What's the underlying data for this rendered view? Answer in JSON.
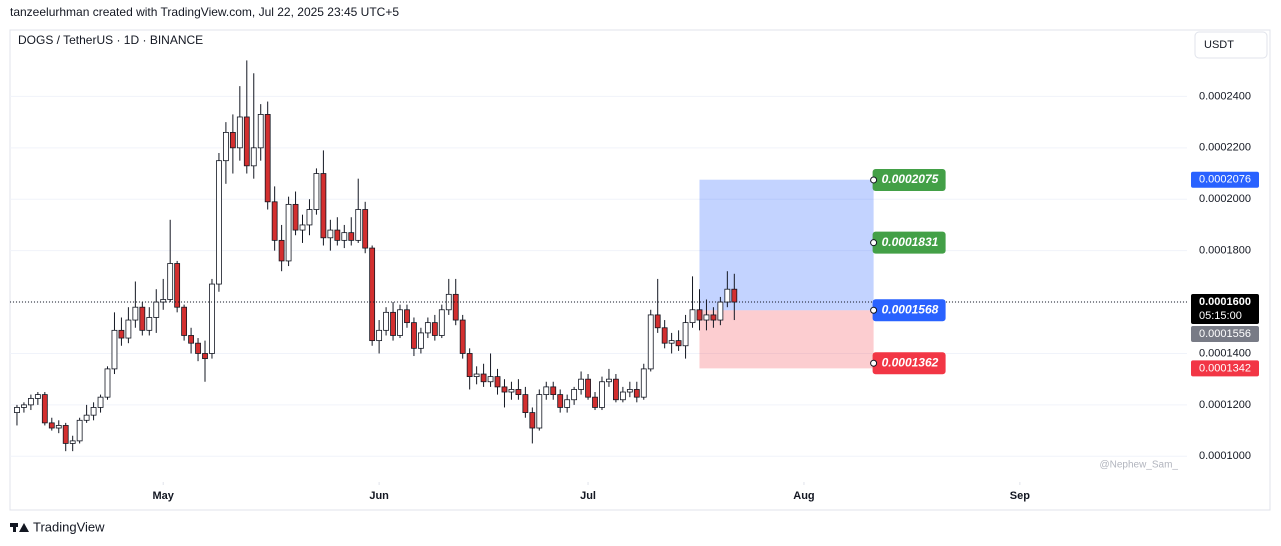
{
  "header": "tanzeelurhman created with TradingView.com, Jul 22, 2025 23:45 UTC+5",
  "footer": "TradingView",
  "chart_data": {
    "type": "candlestick",
    "title": "DOGS / TetherUS · 1D · BINANCE",
    "currency": "USDT",
    "watermark": "@Nephew_Sam_",
    "up_color": "#ffffff",
    "down_color": "#d32f2f",
    "x": [
      "2025-04-10",
      "2025-04-11",
      "2025-04-12",
      "2025-04-13",
      "2025-04-14",
      "2025-04-15",
      "2025-04-16",
      "2025-04-17",
      "2025-04-18",
      "2025-04-19",
      "2025-04-20",
      "2025-04-21",
      "2025-04-22",
      "2025-04-23",
      "2025-04-24",
      "2025-04-25",
      "2025-04-26",
      "2025-04-27",
      "2025-04-28",
      "2025-04-29",
      "2025-04-30",
      "2025-05-01",
      "2025-05-02",
      "2025-05-03",
      "2025-05-04",
      "2025-05-05",
      "2025-05-06",
      "2025-05-07",
      "2025-05-08",
      "2025-05-09",
      "2025-05-10",
      "2025-05-11",
      "2025-05-12",
      "2025-05-13",
      "2025-05-14",
      "2025-05-15",
      "2025-05-16",
      "2025-05-17",
      "2025-05-18",
      "2025-05-19",
      "2025-05-20",
      "2025-05-21",
      "2025-05-22",
      "2025-05-23",
      "2025-05-24",
      "2025-05-25",
      "2025-05-26",
      "2025-05-27",
      "2025-05-28",
      "2025-05-29",
      "2025-05-30",
      "2025-05-31",
      "2025-06-01",
      "2025-06-02",
      "2025-06-03",
      "2025-06-04",
      "2025-06-05",
      "2025-06-06",
      "2025-06-07",
      "2025-06-08",
      "2025-06-09",
      "2025-06-10",
      "2025-06-11",
      "2025-06-12",
      "2025-06-13",
      "2025-06-14",
      "2025-06-15",
      "2025-06-16",
      "2025-06-17",
      "2025-06-18",
      "2025-06-19",
      "2025-06-20",
      "2025-06-21",
      "2025-06-22",
      "2025-06-23",
      "2025-06-24",
      "2025-06-25",
      "2025-06-26",
      "2025-06-27",
      "2025-06-28",
      "2025-06-29",
      "2025-06-30",
      "2025-07-01",
      "2025-07-02",
      "2025-07-03",
      "2025-07-04",
      "2025-07-05",
      "2025-07-06",
      "2025-07-07",
      "2025-07-08",
      "2025-07-09",
      "2025-07-10",
      "2025-07-11",
      "2025-07-12",
      "2025-07-13",
      "2025-07-14",
      "2025-07-15",
      "2025-07-16",
      "2025-07-17",
      "2025-07-18",
      "2025-07-19",
      "2025-07-20",
      "2025-07-21",
      "2025-07-22"
    ],
    "open": [
      0.000117,
      0.000119,
      0.00012,
      0.0001225,
      0.000124,
      0.000113,
      0.000111,
      0.000112,
      0.000105,
      0.000106,
      0.000114,
      0.000116,
      0.000119,
      0.000123,
      0.000134,
      0.000149,
      0.000146,
      0.000153,
      0.000158,
      0.000149,
      0.000154,
      0.00016,
      0.000161,
      0.000175,
      0.000158,
      0.000147,
      0.000144,
      0.00014,
      0.00014,
      0.000167,
      0.000215,
      0.000226,
      0.00022,
      0.000232,
      0.000213,
      0.00022,
      0.000233,
      0.000199,
      0.000184,
      0.000176,
      0.000198,
      0.000188,
      0.00019,
      0.000196,
      0.00021,
      0.000185,
      0.000188,
      0.000184,
      0.000187,
      0.000184,
      0.000196,
      0.000181,
      0.000145,
      0.000149,
      0.000156,
      0.000147,
      0.000157,
      0.000152,
      0.000142,
      0.000148,
      0.000152,
      0.000147,
      0.000157,
      0.000163,
      0.000153,
      0.00014,
      0.000131,
      0.000132,
      0.000129,
      0.000131,
      0.000127,
      0.000125,
      0.000126,
      0.000124,
      0.000117,
      0.000111,
      0.000124,
      0.000127,
      0.000124,
      0.000119,
      0.000122,
      0.000126,
      0.00013,
      0.000123,
      0.000119,
      0.000129,
      0.00013,
      0.000122,
      0.000125,
      0.000126,
      0.000123,
      0.000134,
      0.000155,
      0.00015,
      0.000144,
      0.000145,
      0.000143,
      0.000152,
      0.000157,
      0.000153,
      0.000155,
      0.000153,
      0.00016,
      0.000165
    ],
    "high": [
      0.00012,
      0.000121,
      0.000124,
      0.000125,
      0.000125,
      0.000115,
      0.000114,
      0.000113,
      0.000108,
      0.000115,
      0.00012,
      0.000121,
      0.000124,
      0.000135,
      0.000156,
      0.000154,
      0.000158,
      0.000168,
      0.00016,
      0.000158,
      0.000165,
      0.000169,
      0.000192,
      0.000176,
      0.000159,
      0.00015,
      0.000146,
      0.000145,
      0.000169,
      0.000218,
      0.00023,
      0.000233,
      0.000244,
      0.000254,
      0.000249,
      0.000237,
      0.000238,
      0.000205,
      0.00019,
      0.000201,
      0.000203,
      0.000194,
      0.0002,
      0.000212,
      0.000219,
      0.000192,
      0.000193,
      0.00019,
      0.000193,
      0.000208,
      0.000199,
      0.000182,
      0.000153,
      0.000158,
      0.00016,
      0.000159,
      0.000159,
      0.000154,
      0.00015,
      0.000154,
      0.000155,
      0.000159,
      0.000169,
      0.000169,
      0.000155,
      0.000142,
      0.000135,
      0.000136,
      0.00014,
      0.000134,
      0.00013,
      0.000129,
      0.00013,
      0.000127,
      0.000119,
      0.000126,
      0.000129,
      0.000129,
      0.000126,
      0.000124,
      0.000127,
      0.000133,
      0.000132,
      0.000125,
      0.000131,
      0.000134,
      0.000132,
      0.000127,
      0.000129,
      0.000129,
      0.000136,
      0.000157,
      0.000169,
      0.000153,
      0.000148,
      0.000149,
      0.000155,
      0.00017,
      0.000165,
      0.000161,
      0.000158,
      0.000162,
      0.000172,
      0.000171
    ],
    "low": [
      0.000112,
      0.000117,
      0.000118,
      0.00012,
      0.000112,
      0.00011,
      0.000109,
      0.000102,
      0.000102,
      0.000105,
      0.000113,
      0.000114,
      0.000117,
      0.000122,
      0.000132,
      0.000143,
      0.000144,
      0.00015,
      0.000147,
      0.000147,
      0.000148,
      0.000157,
      0.00016,
      0.000156,
      0.000145,
      0.00014,
      0.000137,
      0.000129,
      0.000138,
      0.000164,
      0.000206,
      0.00021,
      0.000215,
      0.00021,
      0.000208,
      0.000215,
      0.000196,
      0.00018,
      0.000172,
      0.000174,
      0.000186,
      0.000183,
      0.000186,
      0.000194,
      0.000182,
      0.00018,
      0.000182,
      0.000181,
      0.000182,
      0.000183,
      0.000179,
      0.000143,
      0.00014,
      0.000147,
      0.000145,
      0.000146,
      0.00015,
      0.000139,
      0.00014,
      0.000146,
      0.000145,
      0.000146,
      0.000155,
      0.000151,
      0.000138,
      0.000126,
      0.000128,
      0.000127,
      0.000127,
      0.000124,
      0.000119,
      0.000122,
      0.000122,
      0.000115,
      0.000105,
      0.00011,
      0.000122,
      0.000122,
      0.000117,
      0.000117,
      0.00012,
      0.000124,
      0.000122,
      0.000118,
      0.000118,
      0.000127,
      0.000121,
      0.000121,
      0.000123,
      0.000121,
      0.000122,
      0.000133,
      0.000148,
      0.000142,
      0.00014,
      0.000141,
      0.000138,
      0.00015,
      0.000149,
      0.000149,
      0.00015,
      0.000151,
      0.000158,
      0.000153
    ],
    "close": [
      0.000119,
      0.00012,
      0.0001225,
      0.000124,
      0.000113,
      0.000111,
      0.000112,
      0.000105,
      0.000106,
      0.000114,
      0.000116,
      0.000119,
      0.000123,
      0.000134,
      0.000149,
      0.000146,
      0.000153,
      0.000158,
      0.000149,
      0.000154,
      0.00016,
      0.000161,
      0.000175,
      0.000158,
      0.000147,
      0.000144,
      0.00014,
      0.000138,
      0.000167,
      0.000215,
      0.000226,
      0.00022,
      0.000232,
      0.000213,
      0.00022,
      0.000233,
      0.000199,
      0.000184,
      0.000176,
      0.000198,
      0.000188,
      0.00019,
      0.000196,
      0.00021,
      0.000185,
      0.000188,
      0.000184,
      0.000187,
      0.000184,
      0.000196,
      0.000181,
      0.000145,
      0.000149,
      0.000156,
      0.000147,
      0.000157,
      0.000152,
      0.000142,
      0.000148,
      0.000152,
      0.000147,
      0.000157,
      0.000163,
      0.000153,
      0.00014,
      0.000131,
      0.000132,
      0.000129,
      0.000131,
      0.000127,
      0.000125,
      0.000126,
      0.000124,
      0.000117,
      0.000111,
      0.000124,
      0.000127,
      0.000124,
      0.000119,
      0.000122,
      0.000126,
      0.00013,
      0.000123,
      0.000119,
      0.000129,
      0.00013,
      0.000122,
      0.000125,
      0.000126,
      0.000123,
      0.000134,
      0.000155,
      0.00015,
      0.000144,
      0.000145,
      0.000143,
      0.000152,
      0.000157,
      0.000153,
      0.000155,
      0.000153,
      0.00016,
      0.000165,
      0.00016
    ],
    "xlim": [
      "2025-04-09",
      "2025-09-25"
    ],
    "xticks": [
      {
        "value": "2025-05-01",
        "label": "May"
      },
      {
        "value": "2025-06-01",
        "label": "Jun"
      },
      {
        "value": "2025-07-01",
        "label": "Jul"
      },
      {
        "value": "2025-08-01",
        "label": "Aug"
      },
      {
        "value": "2025-09-01",
        "label": "Sep"
      }
    ],
    "ylim": [
      9e-05,
      0.00026
    ],
    "yticks": [
      {
        "value": 0.0001,
        "label": "0.0001000"
      },
      {
        "value": 0.00012,
        "label": "0.0001200"
      },
      {
        "value": 0.00014,
        "label": "0.0001400"
      },
      {
        "value": 0.00016,
        "label": "0.0001600"
      },
      {
        "value": 0.00018,
        "label": "0.0001800"
      },
      {
        "value": 0.0002,
        "label": "0.0002000"
      },
      {
        "value": 0.00022,
        "label": "0.0002200"
      },
      {
        "value": 0.00024,
        "label": "0.0002400"
      }
    ],
    "grid": true,
    "last_price": {
      "value": 0.00016,
      "label": "0.0001600",
      "countdown": "05:15:00",
      "color": "#000000"
    },
    "price_tags": [
      {
        "value": 0.0002076,
        "label": "0.0002076",
        "color": "#2962ff"
      },
      {
        "value": 0.0001556,
        "label": "0.0001556",
        "color": "#787b86"
      },
      {
        "value": 0.0001342,
        "label": "0.0001342",
        "color": "#f23645"
      }
    ],
    "position": {
      "start": "2025-07-17",
      "end": "2025-08-11",
      "entry": 0.0001568,
      "target": 0.0002076,
      "stop": 0.0001342,
      "target_color": "#2962ff",
      "stop_color": "#f23645"
    },
    "zone_labels": [
      {
        "value": 0.0002075,
        "label": "0.0002075",
        "color": "#43a047"
      },
      {
        "value": 0.0001831,
        "label": "0.0001831",
        "color": "#43a047"
      },
      {
        "value": 0.0001568,
        "label": "0.0001568",
        "color": "#2962ff"
      },
      {
        "value": 0.0001362,
        "label": "0.0001362",
        "color": "#f23645"
      }
    ]
  }
}
